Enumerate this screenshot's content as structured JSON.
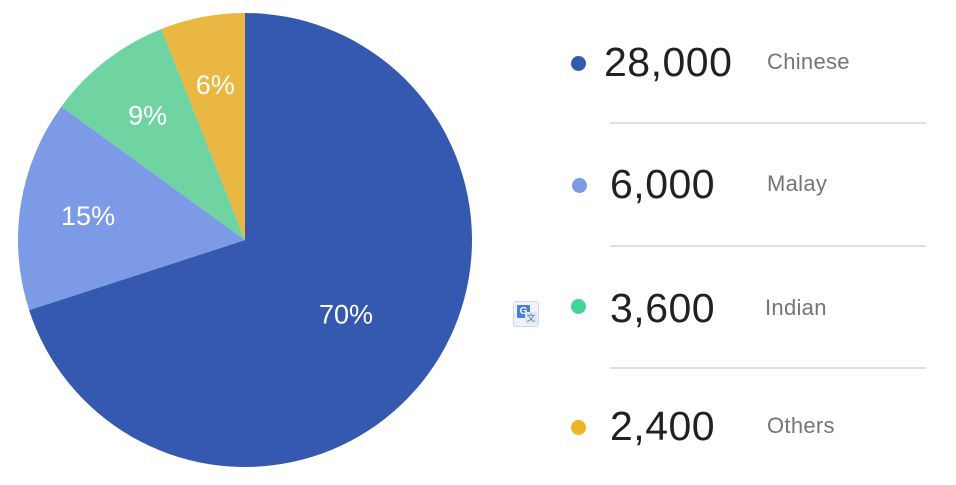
{
  "chart_data": {
    "type": "pie",
    "slices": [
      {
        "label": "Chinese",
        "value": 28000,
        "percent_label": "70%",
        "value_label": "28,000",
        "color": "#3558b0"
      },
      {
        "label": "Malay",
        "value": 6000,
        "percent_label": "15%",
        "value_label": "6,000",
        "color": "#7c9ae6"
      },
      {
        "label": "Indian",
        "value": 3600,
        "percent_label": "9%",
        "value_label": "3,600",
        "color": "#6fd3a2"
      },
      {
        "label": "Others",
        "value": 2400,
        "percent_label": "6%",
        "value_label": "2,400",
        "color": "#e9b742"
      }
    ],
    "start": "12 o'clock",
    "direction": "clockwise",
    "legend_position": "right"
  },
  "legend": [
    {
      "value": "28,000",
      "name": "Chinese",
      "color": "#3558b0"
    },
    {
      "value": "6,000",
      "name": "Malay",
      "color": "#7c9ae6"
    },
    {
      "value": "3,600",
      "name": "Indian",
      "color": "#3fd69a"
    },
    {
      "value": "2,400",
      "name": "Others",
      "color": "#f0b323"
    }
  ],
  "icons": {
    "translate": "google-translate-icon"
  }
}
